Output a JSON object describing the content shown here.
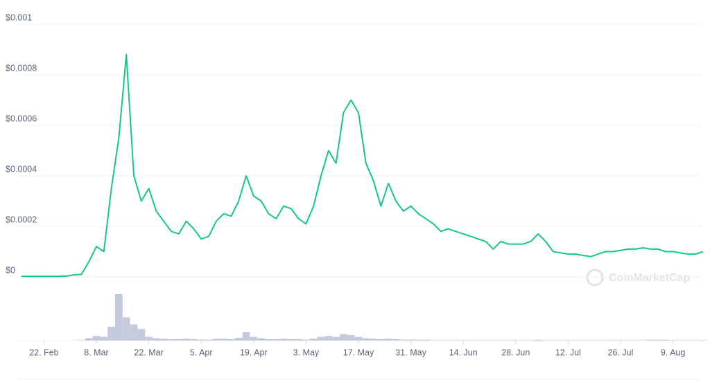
{
  "chart_data": {
    "type": "line",
    "watermark": "CoinMarketCap",
    "categories": [
      null,
      null,
      null,
      "22. Feb",
      null,
      null,
      null,
      null,
      null,
      null,
      "8. Mar",
      null,
      null,
      null,
      null,
      null,
      null,
      "22. Mar",
      null,
      null,
      null,
      null,
      null,
      null,
      "5. Apr",
      null,
      null,
      null,
      null,
      null,
      null,
      "19. Apr",
      null,
      null,
      null,
      null,
      null,
      null,
      "3. May",
      null,
      null,
      null,
      null,
      null,
      null,
      "17. May",
      null,
      null,
      null,
      null,
      null,
      null,
      "31. May",
      null,
      null,
      null,
      null,
      null,
      null,
      "14. Jun",
      null,
      null,
      null,
      null,
      null,
      null,
      "28. Jun",
      null,
      null,
      null,
      null,
      null,
      null,
      "12. Jul",
      null,
      null,
      null,
      null,
      null,
      null,
      "26. Jul",
      null,
      null,
      null,
      null,
      null,
      null,
      "9. Aug",
      null,
      null,
      null,
      null
    ],
    "series": [
      {
        "color": "#16c784",
        "values": [
          2e-06,
          2e-06,
          2e-06,
          2e-06,
          2e-06,
          2e-06,
          3e-06,
          8e-06,
          1e-05,
          6e-05,
          0.00012,
          0.0001,
          0.00035,
          0.00055,
          0.00088,
          0.0004,
          0.0003,
          0.00035,
          0.00026,
          0.00022,
          0.00018,
          0.00017,
          0.00022,
          0.00019,
          0.00015,
          0.00016,
          0.00022,
          0.00025,
          0.00024,
          0.0003,
          0.0004,
          0.00032,
          0.0003,
          0.00025,
          0.00023,
          0.00028,
          0.00027,
          0.00023,
          0.00021,
          0.00028,
          0.0004,
          0.0005,
          0.00045,
          0.00065,
          0.0007,
          0.00065,
          0.00045,
          0.00038,
          0.00028,
          0.00037,
          0.0003,
          0.00026,
          0.00028,
          0.00025,
          0.00023,
          0.00021,
          0.00018,
          0.00019,
          0.00018,
          0.00017,
          0.00016,
          0.00015,
          0.00014,
          0.00011,
          0.00014,
          0.00013,
          0.00013,
          0.00013,
          0.00014,
          0.00017,
          0.00014,
          0.0001,
          9.5e-05,
          9e-05,
          9e-05,
          8.5e-05,
          8e-05,
          9e-05,
          0.0001,
          0.0001,
          0.000105,
          0.00011,
          0.00011,
          0.000115,
          0.00011,
          0.00011,
          0.0001,
          0.0001,
          9.5e-05,
          9e-05,
          9e-05,
          0.0001
        ]
      },
      {
        "color": "#c5cbdc",
        "axis": "y2",
        "values": [
          0,
          0,
          0,
          0,
          0,
          0,
          0,
          0.5,
          1,
          5,
          10,
          8,
          30,
          100,
          50,
          35,
          25,
          8,
          5,
          4,
          3,
          3,
          4,
          3,
          2,
          2,
          4,
          4,
          3,
          6,
          18,
          8,
          5,
          3,
          3,
          4,
          3,
          3,
          2,
          4,
          8,
          10,
          8,
          14,
          12,
          8,
          5,
          4,
          3,
          4,
          3,
          2,
          2,
          2,
          2,
          1,
          1,
          1,
          1,
          1,
          1,
          1,
          1,
          1,
          1,
          1,
          1,
          1,
          1,
          2,
          1,
          1,
          1,
          1,
          1,
          1,
          1,
          1,
          1,
          1,
          1,
          1,
          1,
          1,
          2,
          2,
          2,
          1,
          1,
          1,
          1,
          1
        ]
      }
    ],
    "ylim": [
      0,
      0.001
    ],
    "yticks": [
      {
        "value": 0,
        "label": "$0"
      },
      {
        "value": 0.0002,
        "label": "$0.0002"
      },
      {
        "value": 0.0004,
        "label": "$0.0004"
      },
      {
        "value": 0.0006,
        "label": "$0.0006"
      },
      {
        "value": 0.0008,
        "label": "$0.0008"
      },
      {
        "value": 0.001,
        "label": "$0.001"
      }
    ],
    "y2lim": [
      0,
      100
    ],
    "grid": true
  }
}
